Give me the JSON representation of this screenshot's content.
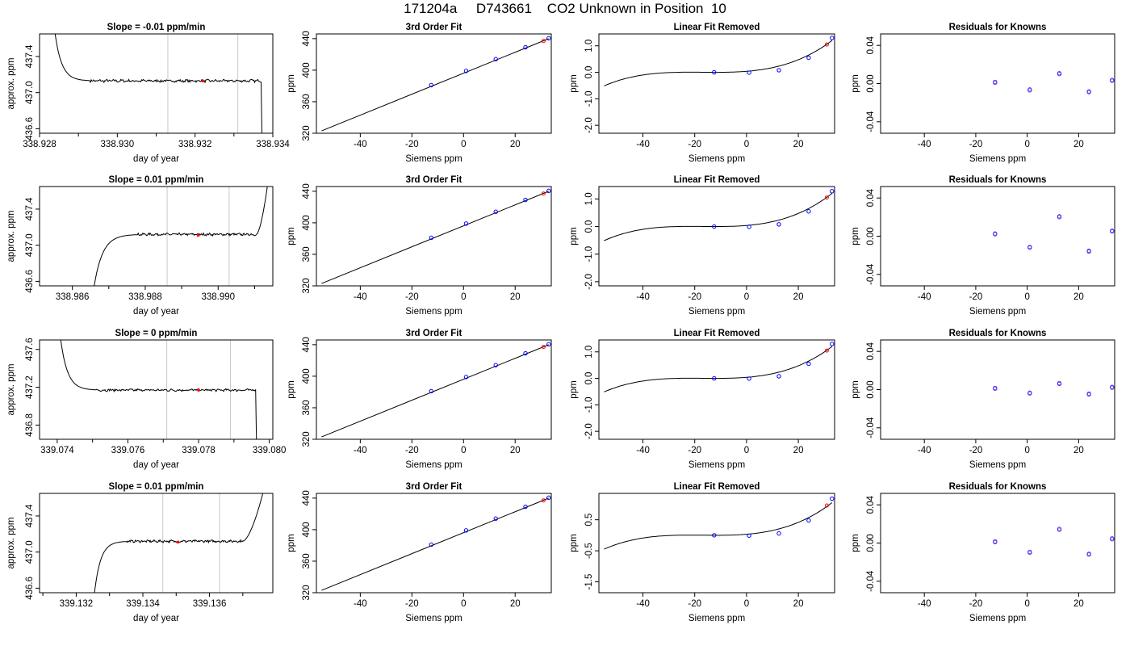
{
  "figure": {
    "title": "171204a     D743661    CO2 Unknown in Position  10"
  },
  "colors": {
    "axes": "#000000",
    "trace": "#000000",
    "window_lines": "#c8c8c8",
    "unknown_point": "#ff0000",
    "known_point": "#0000ff",
    "residual_point": "#8a2be2",
    "fit_curve": "#000000"
  },
  "chart_data": [
    {
      "type": "line",
      "panel": "trace",
      "row": 0,
      "col": 0,
      "title": "Slope =  -0.01  ppm/min",
      "xlabel": "day of year",
      "ylabel": "approx. ppm",
      "xlim": [
        338.928,
        338.934
      ],
      "ylim": [
        436.55,
        437.65
      ],
      "xticks": [
        338.928,
        338.93,
        338.932,
        338.934
      ],
      "xtick_labels": [
        "338.928",
        "338.930",
        "338.932",
        "338.934"
      ],
      "minor_xticks": [
        338.929,
        338.931,
        338.933
      ],
      "yticks": [
        436.6,
        437.0,
        437.4
      ],
      "ytick_labels": [
        "436.6",
        "437.0",
        "437.4"
      ],
      "trace": {
        "x0": 338.9284,
        "x1": 338.93376,
        "start_y": 437.65,
        "plateau_y": 437.13,
        "transition_end_x": 338.9293,
        "end_x": 338.93372,
        "end_y": 436.55,
        "end_mode": "drop",
        "noise": 0.013
      },
      "window": [
        338.9313,
        338.9331
      ],
      "unknown_mean": {
        "x": 338.9322,
        "y": 437.13
      }
    },
    {
      "type": "scatter",
      "panel": "fit",
      "row": 0,
      "col": 1,
      "title": "3rd Order Fit",
      "xlabel": "Siemens ppm",
      "ylabel": "ppm",
      "xlim": [
        -57,
        34
      ],
      "ylim": [
        320,
        446
      ],
      "xticks": [
        -40,
        -20,
        0,
        20
      ],
      "xtick_labels": [
        "-40",
        "-20",
        "0",
        "20"
      ],
      "yticks": [
        320,
        360,
        400,
        440
      ],
      "ytick_labels": [
        "320",
        "360",
        "400",
        "440"
      ],
      "curve": {
        "type": "line",
        "x": [
          -55,
          33
        ],
        "y": [
          323,
          440
        ]
      },
      "knowns": {
        "x": [
          -12.5,
          1,
          12.5,
          24,
          33
        ],
        "y": [
          381,
          399,
          414,
          429,
          440.5
        ]
      },
      "unknown": {
        "x": 31,
        "y": 437.1
      }
    },
    {
      "type": "scatter",
      "panel": "linfit",
      "row": 0,
      "col": 2,
      "title": "Linear Fit Removed",
      "xlabel": "Siemens ppm",
      "ylabel": "ppm",
      "xlim": [
        -57,
        34
      ],
      "ylim": [
        -2.3,
        1.45
      ],
      "xticks": [
        -40,
        -20,
        0,
        20
      ],
      "xtick_labels": [
        "-40",
        "-20",
        "0",
        "20"
      ],
      "yticks": [
        -2,
        -1,
        0,
        1
      ],
      "ytick_labels": [
        "-2.0",
        "-1.0",
        "0.0",
        "1.0"
      ],
      "curve": {
        "type": "cubic",
        "x_from": -55,
        "x_to": 33,
        "x_min": -12,
        "x_max": 33,
        "y_min": 0.0,
        "y_max": 1.2
      },
      "knowns": {
        "x": [
          -12.5,
          1,
          12.5,
          24,
          33
        ],
        "y": [
          0.0,
          -0.01,
          0.08,
          0.55,
          1.3
        ]
      },
      "unknown": {
        "x": 31,
        "y": 1.05
      }
    },
    {
      "type": "scatter",
      "panel": "resid",
      "row": 0,
      "col": 3,
      "title": "Residuals for Knowns",
      "xlabel": "Siemens ppm",
      "ylabel": "ppm",
      "xlim": [
        -57,
        34
      ],
      "ylim": [
        -0.052,
        0.052
      ],
      "xticks": [
        -40,
        -20,
        0,
        20
      ],
      "xtick_labels": [
        "-40",
        "-20",
        "0",
        "20"
      ],
      "yticks": [
        -0.04,
        0.0,
        0.04
      ],
      "ytick_labels": [
        "-0.04",
        "0.00",
        "0.04"
      ],
      "knowns": {
        "x": [
          -12.5,
          1,
          12.5,
          24,
          33
        ],
        "y": [
          0.001,
          -0.007,
          0.01,
          -0.009,
          0.003
        ]
      }
    },
    {
      "type": "line",
      "panel": "trace",
      "row": 1,
      "col": 0,
      "title": "Slope =  0.01  ppm/min",
      "xlabel": "day of year",
      "ylabel": "approx. ppm",
      "xlim": [
        338.9851,
        338.9915
      ],
      "ylim": [
        436.55,
        437.65
      ],
      "xticks": [
        338.986,
        338.988,
        338.99
      ],
      "xtick_labels": [
        "338.986",
        "338.988",
        "338.990"
      ],
      "minor_xticks": [
        338.987,
        338.989,
        338.991
      ],
      "yticks": [
        436.6,
        437.0,
        437.4
      ],
      "ytick_labels": [
        "436.6",
        "437.0",
        "437.4"
      ],
      "trace": {
        "x0": 338.9866,
        "x1": 338.99135,
        "start_y": 436.55,
        "plateau_y": 437.12,
        "transition_end_x": 338.9878,
        "end_x": 338.99135,
        "end_y": 437.65,
        "end_mode": "rise",
        "rise_start_x": 338.99105,
        "noise": 0.011
      },
      "window": [
        338.9886,
        338.9903
      ],
      "unknown_mean": {
        "x": 338.98945,
        "y": 437.11
      }
    },
    {
      "type": "scatter",
      "panel": "fit",
      "row": 1,
      "col": 1,
      "title": "3rd Order Fit",
      "xlabel": "Siemens ppm",
      "ylabel": "ppm",
      "xlim": [
        -57,
        34
      ],
      "ylim": [
        320,
        446
      ],
      "xticks": [
        -40,
        -20,
        0,
        20
      ],
      "xtick_labels": [
        "-40",
        "-20",
        "0",
        "20"
      ],
      "yticks": [
        320,
        360,
        400,
        440
      ],
      "ytick_labels": [
        "320",
        "360",
        "400",
        "440"
      ],
      "curve": {
        "type": "line",
        "x": [
          -55,
          33
        ],
        "y": [
          323,
          440
        ]
      },
      "knowns": {
        "x": [
          -12.5,
          1,
          12.5,
          24,
          33
        ],
        "y": [
          381,
          399,
          414,
          429,
          440.5
        ]
      },
      "unknown": {
        "x": 31,
        "y": 437.1
      }
    },
    {
      "type": "scatter",
      "panel": "linfit",
      "row": 1,
      "col": 2,
      "title": "Linear Fit Removed",
      "xlabel": "Siemens ppm",
      "ylabel": "ppm",
      "xlim": [
        -57,
        34
      ],
      "ylim": [
        -2.15,
        1.45
      ],
      "xticks": [
        -40,
        -20,
        0,
        20
      ],
      "xtick_labels": [
        "-40",
        "-20",
        "0",
        "20"
      ],
      "yticks": [
        -2,
        -1,
        0,
        1
      ],
      "ytick_labels": [
        "-2.0",
        "-1.0",
        "0.0",
        "1.0"
      ],
      "curve": {
        "type": "cubic",
        "x_from": -55,
        "x_to": 33,
        "x_min": -12,
        "x_max": 33,
        "y_min": 0.0,
        "y_max": 1.2
      },
      "knowns": {
        "x": [
          -12.5,
          1,
          12.5,
          24,
          33
        ],
        "y": [
          0.0,
          -0.01,
          0.08,
          0.55,
          1.28
        ]
      },
      "unknown": {
        "x": 31,
        "y": 1.05
      }
    },
    {
      "type": "scatter",
      "panel": "resid",
      "row": 1,
      "col": 3,
      "title": "Residuals for Knowns",
      "xlabel": "Siemens ppm",
      "ylabel": "ppm",
      "xlim": [
        -57,
        34
      ],
      "ylim": [
        -0.052,
        0.052
      ],
      "xticks": [
        -40,
        -20,
        0,
        20
      ],
      "xtick_labels": [
        "-40",
        "-20",
        "0",
        "20"
      ],
      "yticks": [
        -0.04,
        0.0,
        0.04
      ],
      "ytick_labels": [
        "-0.04",
        "0.00",
        "0.04"
      ],
      "knowns": {
        "x": [
          -12.5,
          1,
          12.5,
          24,
          33
        ],
        "y": [
          0.002,
          -0.012,
          0.02,
          -0.016,
          0.005
        ]
      }
    },
    {
      "type": "line",
      "panel": "trace",
      "row": 2,
      "col": 0,
      "title": "Slope =  0  ppm/min",
      "xlabel": "day of year",
      "ylabel": "approx. ppm",
      "xlim": [
        339.0735,
        339.0801
      ],
      "ylim": [
        436.65,
        437.7
      ],
      "xticks": [
        339.074,
        339.076,
        339.078,
        339.08
      ],
      "xtick_labels": [
        "339.074",
        "339.076",
        "339.078",
        "339.080"
      ],
      "minor_xticks": [
        339.075,
        339.077,
        339.079
      ],
      "yticks": [
        436.8,
        437.2,
        437.6
      ],
      "ytick_labels": [
        "436.8",
        "437.2",
        "437.6"
      ],
      "trace": {
        "x0": 339.0741,
        "x1": 339.0797,
        "start_y": 437.7,
        "plateau_y": 437.17,
        "transition_end_x": 339.0751,
        "end_x": 339.07965,
        "end_y": 436.65,
        "end_mode": "drop",
        "noise": 0.011
      },
      "window": [
        339.0771,
        339.0789
      ],
      "unknown_mean": {
        "x": 339.078,
        "y": 437.17
      }
    },
    {
      "type": "scatter",
      "panel": "fit",
      "row": 2,
      "col": 1,
      "title": "3rd Order Fit",
      "xlabel": "Siemens ppm",
      "ylabel": "ppm",
      "xlim": [
        -57,
        34
      ],
      "ylim": [
        320,
        446
      ],
      "xticks": [
        -40,
        -20,
        0,
        20
      ],
      "xtick_labels": [
        "-40",
        "-20",
        "0",
        "20"
      ],
      "yticks": [
        320,
        360,
        400,
        440
      ],
      "ytick_labels": [
        "320",
        "360",
        "400",
        "440"
      ],
      "curve": {
        "type": "line",
        "x": [
          -55,
          33
        ],
        "y": [
          323,
          440
        ]
      },
      "knowns": {
        "x": [
          -12.5,
          1,
          12.5,
          24,
          33
        ],
        "y": [
          381,
          399,
          414,
          429,
          440.5
        ]
      },
      "unknown": {
        "x": 31,
        "y": 437.2
      }
    },
    {
      "type": "scatter",
      "panel": "linfit",
      "row": 2,
      "col": 2,
      "title": "Linear Fit Removed",
      "xlabel": "Siemens ppm",
      "ylabel": "ppm",
      "xlim": [
        -57,
        34
      ],
      "ylim": [
        -2.3,
        1.45
      ],
      "xticks": [
        -40,
        -20,
        0,
        20
      ],
      "xtick_labels": [
        "-40",
        "-20",
        "0",
        "20"
      ],
      "yticks": [
        -2,
        -1,
        0,
        1
      ],
      "ytick_labels": [
        "-2.0",
        "-1.0",
        "0.0",
        "1.0"
      ],
      "curve": {
        "type": "cubic",
        "x_from": -55,
        "x_to": 33,
        "x_min": -12,
        "x_max": 33,
        "y_min": 0.0,
        "y_max": 1.2
      },
      "knowns": {
        "x": [
          -12.5,
          1,
          12.5,
          24,
          33
        ],
        "y": [
          0.0,
          -0.01,
          0.08,
          0.55,
          1.3
        ]
      },
      "unknown": {
        "x": 31,
        "y": 1.05
      }
    },
    {
      "type": "scatter",
      "panel": "resid",
      "row": 2,
      "col": 3,
      "title": "Residuals for Knowns",
      "xlabel": "Siemens ppm",
      "ylabel": "ppm",
      "xlim": [
        -57,
        34
      ],
      "ylim": [
        -0.052,
        0.052
      ],
      "xticks": [
        -40,
        -20,
        0,
        20
      ],
      "xtick_labels": [
        "-40",
        "-20",
        "0",
        "20"
      ],
      "yticks": [
        -0.04,
        0.0,
        0.04
      ],
      "ytick_labels": [
        "-0.04",
        "0.00",
        "0.04"
      ],
      "knowns": {
        "x": [
          -12.5,
          1,
          12.5,
          24,
          33
        ],
        "y": [
          0.001,
          -0.004,
          0.006,
          -0.005,
          0.002
        ]
      }
    },
    {
      "type": "line",
      "panel": "trace",
      "row": 3,
      "col": 0,
      "title": "Slope =  0.01  ppm/min",
      "xlabel": "day of year",
      "ylabel": "approx. ppm",
      "xlim": [
        339.1309,
        339.1379
      ],
      "ylim": [
        436.55,
        437.65
      ],
      "xticks": [
        339.132,
        339.134,
        339.136
      ],
      "xtick_labels": [
        "339.132",
        "339.134",
        "339.136"
      ],
      "minor_xticks": [
        339.131,
        339.133,
        339.135,
        339.137
      ],
      "yticks": [
        436.6,
        437.0,
        437.4
      ],
      "ytick_labels": [
        "436.6",
        "437.0",
        "437.4"
      ],
      "trace": {
        "x0": 339.13255,
        "x1": 339.1376,
        "start_y": 436.55,
        "plateau_y": 437.12,
        "transition_end_x": 339.1335,
        "end_x": 339.1376,
        "end_y": 437.65,
        "end_mode": "rise",
        "rise_start_x": 339.137,
        "noise": 0.011
      },
      "window": [
        339.1346,
        339.1363
      ],
      "unknown_mean": {
        "x": 339.13505,
        "y": 437.11
      }
    },
    {
      "type": "scatter",
      "panel": "fit",
      "row": 3,
      "col": 1,
      "title": "3rd Order Fit",
      "xlabel": "Siemens ppm",
      "ylabel": "ppm",
      "xlim": [
        -57,
        34
      ],
      "ylim": [
        320,
        446
      ],
      "xticks": [
        -40,
        -20,
        0,
        20
      ],
      "xtick_labels": [
        "-40",
        "-20",
        "0",
        "20"
      ],
      "yticks": [
        320,
        360,
        400,
        440
      ],
      "ytick_labels": [
        "320",
        "360",
        "400",
        "440"
      ],
      "curve": {
        "type": "line",
        "x": [
          -55,
          33
        ],
        "y": [
          323,
          440
        ]
      },
      "knowns": {
        "x": [
          -12.5,
          1,
          12.5,
          24,
          33
        ],
        "y": [
          381,
          399,
          414,
          429,
          440.5
        ]
      },
      "unknown": {
        "x": 31,
        "y": 437.1
      }
    },
    {
      "type": "scatter",
      "panel": "linfit",
      "row": 3,
      "col": 2,
      "title": "Linear Fit Removed",
      "xlabel": "Siemens ppm",
      "ylabel": "ppm",
      "xlim": [
        -57,
        34
      ],
      "ylim": [
        -1.85,
        1.35
      ],
      "xticks": [
        -40,
        -20,
        0,
        20
      ],
      "xtick_labels": [
        "-40",
        "-20",
        "0",
        "20"
      ],
      "yticks": [
        -1.5,
        -0.5,
        0.5
      ],
      "ytick_labels": [
        "-1.5",
        "-0.5",
        "0.5"
      ],
      "curve": {
        "type": "cubic",
        "x_from": -55,
        "x_to": 33,
        "x_min": -12,
        "x_max": 33,
        "y_min": 0.0,
        "y_max": 1.05
      },
      "knowns": {
        "x": [
          -12.5,
          1,
          12.5,
          24,
          33
        ],
        "y": [
          0.0,
          -0.01,
          0.06,
          0.48,
          1.18
        ]
      },
      "unknown": {
        "x": 31,
        "y": 0.96
      }
    },
    {
      "type": "scatter",
      "panel": "resid",
      "row": 3,
      "col": 3,
      "title": "Residuals for Knowns",
      "xlabel": "Siemens ppm",
      "ylabel": "ppm",
      "xlim": [
        -57,
        34
      ],
      "ylim": [
        -0.052,
        0.052
      ],
      "xticks": [
        -40,
        -20,
        0,
        20
      ],
      "xtick_labels": [
        "-40",
        "-20",
        "0",
        "20"
      ],
      "yticks": [
        -0.04,
        0.0,
        0.04
      ],
      "ytick_labels": [
        "-0.04",
        "0.00",
        "0.04"
      ],
      "knowns": {
        "x": [
          -12.5,
          1,
          12.5,
          24,
          33
        ],
        "y": [
          0.001,
          -0.01,
          0.014,
          -0.012,
          0.004
        ]
      }
    }
  ]
}
